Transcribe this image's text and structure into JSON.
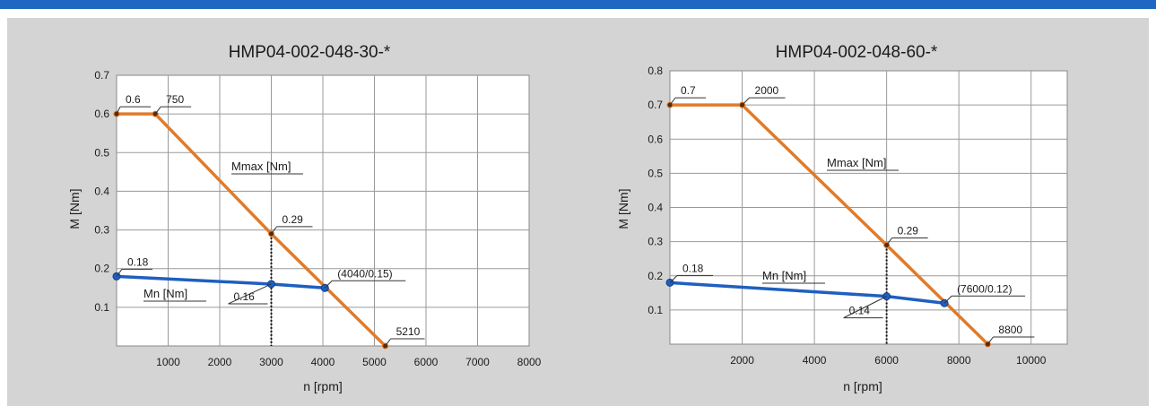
{
  "colors": {
    "max": "#e07b2a",
    "nominal": "#1f5fbf",
    "bar": "#1f68c1"
  },
  "chart_data": [
    {
      "type": "line",
      "title": "HMP04-002-048-30-*",
      "xlabel": "n [rpm]",
      "ylabel": "M [Nm]",
      "xlim": [
        0,
        8000
      ],
      "ylim": [
        0,
        0.7
      ],
      "xticks": [
        1000,
        2000,
        3000,
        4000,
        5000,
        6000,
        7000,
        8000
      ],
      "yticks": [
        0.1,
        0.2,
        0.3,
        0.4,
        0.5,
        0.6,
        0.7
      ],
      "grid": true,
      "series": [
        {
          "name": "Mmax [Nm]",
          "x": [
            0,
            750,
            3000,
            5210
          ],
          "y": [
            0.6,
            0.6,
            0.29,
            0
          ]
        },
        {
          "name": "Mn [Nm]",
          "x": [
            0,
            3000,
            4040
          ],
          "y": [
            0.18,
            0.16,
            0.15
          ]
        }
      ],
      "annotations": [
        {
          "text": "0.6",
          "x": 0,
          "y": 0.6
        },
        {
          "text": "750",
          "x": 750,
          "y": 0.6
        },
        {
          "text": "0.29",
          "x": 3000,
          "y": 0.29
        },
        {
          "text": "0.18",
          "x": 0,
          "y": 0.18
        },
        {
          "text": "0.16",
          "x": 3000,
          "y": 0.16
        },
        {
          "text": "(4040/0.15)",
          "x": 4040,
          "y": 0.15
        },
        {
          "text": "5210",
          "x": 5210,
          "y": 0
        }
      ],
      "dashed_x": 3000
    },
    {
      "type": "line",
      "title": "HMP04-002-048-60-*",
      "xlabel": "n [rpm]",
      "ylabel": "M [Nm]",
      "xlim": [
        0,
        11000
      ],
      "ylim": [
        0,
        0.8
      ],
      "xticks": [
        2000,
        4000,
        6000,
        8000,
        10000
      ],
      "yticks": [
        0.1,
        0.2,
        0.3,
        0.4,
        0.5,
        0.6,
        0.7,
        0.8
      ],
      "grid": true,
      "series": [
        {
          "name": "Mmax [Nm]",
          "x": [
            0,
            2000,
            6000,
            8800
          ],
          "y": [
            0.7,
            0.7,
            0.29,
            0
          ]
        },
        {
          "name": "Mn [Nm]",
          "x": [
            0,
            6000,
            7600
          ],
          "y": [
            0.18,
            0.14,
            0.12
          ]
        }
      ],
      "annotations": [
        {
          "text": "0.7",
          "x": 0,
          "y": 0.7
        },
        {
          "text": "2000",
          "x": 2000,
          "y": 0.7
        },
        {
          "text": "0.29",
          "x": 6000,
          "y": 0.29
        },
        {
          "text": "0.18",
          "x": 0,
          "y": 0.18
        },
        {
          "text": "0.14",
          "x": 6000,
          "y": 0.14
        },
        {
          "text": "(7600/0.12)",
          "x": 7600,
          "y": 0.12
        },
        {
          "text": "8800",
          "x": 8800,
          "y": 0
        }
      ],
      "dashed_x": 6000
    }
  ]
}
